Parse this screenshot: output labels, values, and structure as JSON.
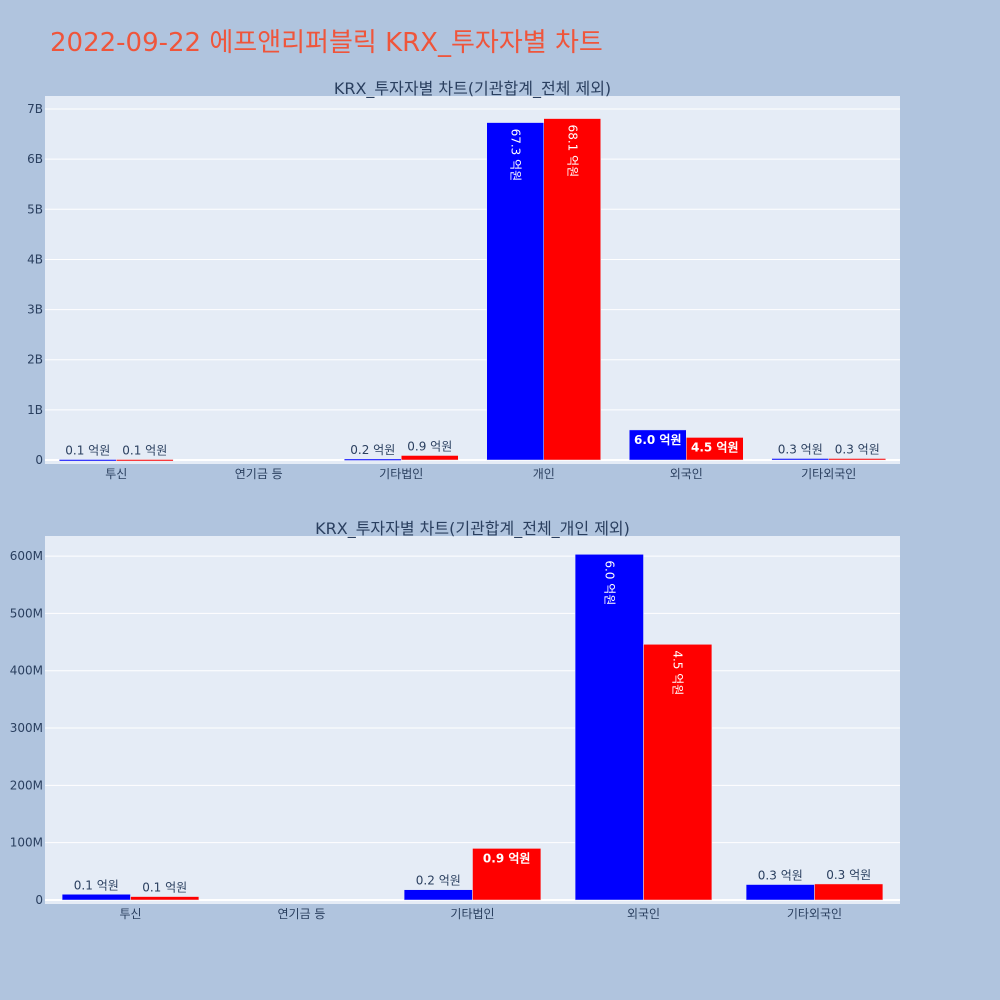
{
  "title": "2022-09-22 에프앤리퍼블릭 KRX_투자자별 차트",
  "colors": {
    "background": "#B0C4DE",
    "plot_bg": "#E5ECF6",
    "title": "#EF553B",
    "series_a": "#0000FF",
    "series_b": "#FF0000"
  },
  "chart_data": [
    {
      "type": "bar",
      "title": "KRX_투자자별 차트(기관합계_전체 제외)",
      "categories": [
        "투신",
        "연기금 등",
        "기타법인",
        "개인",
        "외국인",
        "기타외국인"
      ],
      "series": [
        {
          "color": "#0000FF",
          "values": [
            10000000,
            0,
            20000000,
            6730000000,
            600000000,
            30000000
          ],
          "labels": [
            "0.1 억원",
            "",
            "0.2 억원",
            "67.3 억원",
            "6.0 억원",
            "0.3 억원"
          ]
        },
        {
          "color": "#FF0000",
          "values": [
            10000000,
            0,
            90000000,
            6810000000,
            450000000,
            30000000
          ],
          "labels": [
            "0.1 억원",
            "",
            "0.9 억원",
            "68.1 억원",
            "4.5 억원",
            "0.3 억원"
          ]
        }
      ],
      "yticks": [
        0,
        1000000000,
        2000000000,
        3000000000,
        4000000000,
        5000000000,
        6000000000,
        7000000000
      ],
      "ytick_labels": [
        "0",
        "1B",
        "2B",
        "3B",
        "4B",
        "5B",
        "6B",
        "7B"
      ],
      "ylim": [
        0,
        7260000000
      ],
      "grid": true
    },
    {
      "type": "bar",
      "title": "KRX_투자자별 차트(기관합계_전체_개인 제외)",
      "categories": [
        "투신",
        "연기금 등",
        "기타법인",
        "외국인",
        "기타외국인"
      ],
      "series": [
        {
          "color": "#0000FF",
          "values": [
            10000000,
            0,
            18000000,
            603000000,
            27000000
          ],
          "labels": [
            "0.1 억원",
            "",
            "0.2 억원",
            "6.0 억원",
            "0.3 억원"
          ]
        },
        {
          "color": "#FF0000",
          "values": [
            6000000,
            0,
            90000000,
            446000000,
            28000000
          ],
          "labels": [
            "0.1 억원",
            "",
            "0.9 억원",
            "4.5 억원",
            "0.3 억원"
          ]
        }
      ],
      "yticks": [
        0,
        100000000,
        200000000,
        300000000,
        400000000,
        500000000,
        600000000
      ],
      "ytick_labels": [
        "0",
        "100M",
        "200M",
        "300M",
        "400M",
        "500M",
        "600M"
      ],
      "ylim": [
        0,
        635000000
      ],
      "grid": true
    }
  ]
}
